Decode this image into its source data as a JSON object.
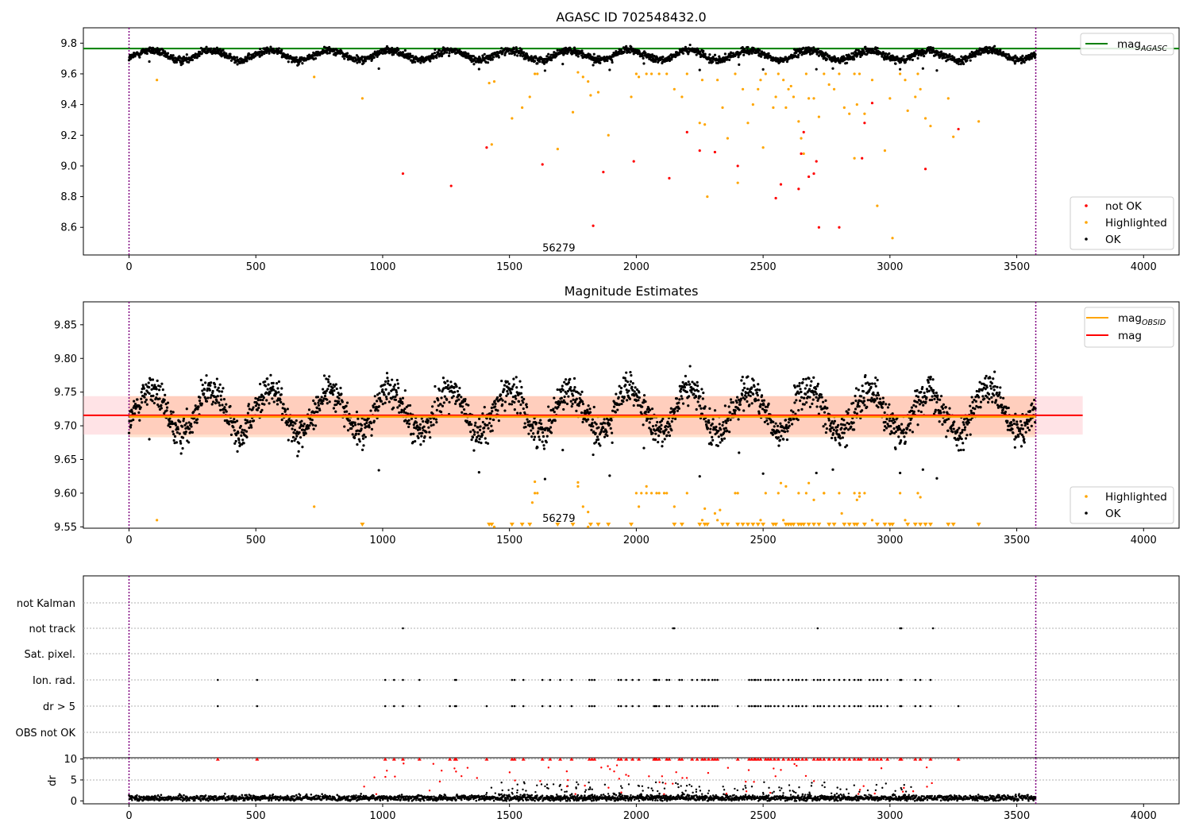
{
  "chart_data": [
    {
      "type": "scatter",
      "title": "AGASC ID 702548432.0",
      "xlim": [
        -180,
        4140
      ],
      "ylim": [
        8.42,
        9.9
      ],
      "xticks": [
        0,
        500,
        1000,
        1500,
        2000,
        2500,
        3000,
        3500,
        4000
      ],
      "yticks": [
        8.6,
        8.8,
        9.0,
        9.2,
        9.4,
        9.6,
        9.8
      ],
      "ytick_labels": [
        "8.6",
        "8.8",
        "9.0",
        "9.2",
        "9.4",
        "9.6",
        "9.8"
      ],
      "obsid_boundaries": [
        0,
        3575
      ],
      "annotation": {
        "text": "56279",
        "x": 1780,
        "y": 8.47
      },
      "hlines": [
        {
          "name": "mag_AGASC",
          "y": 9.765,
          "color": "#008000"
        }
      ],
      "series": [
        {
          "name": "not OK",
          "color": "#ff0000",
          "n_points": 35
        },
        {
          "name": "Highlighted",
          "color": "#ffa500",
          "n_points": 110
        },
        {
          "name": "OK",
          "color": "#000000",
          "n_points": 2400,
          "oscillation": {
            "center": 9.722,
            "amplitude": 0.032,
            "period_days": 236,
            "noise": 0.012
          }
        }
      ],
      "legends": [
        {
          "entries": [
            {
              "label": "mag",
              "sub": "AGASC",
              "color": "#008000",
              "kind": "line"
            }
          ],
          "loc": "upper right"
        },
        {
          "entries": [
            {
              "label": "not OK",
              "color": "#ff0000",
              "kind": "dot"
            },
            {
              "label": "Highlighted",
              "color": "#ffa500",
              "kind": "dot"
            },
            {
              "label": "OK",
              "color": "#000000",
              "kind": "dot"
            }
          ],
          "loc": "lower right"
        }
      ]
    },
    {
      "type": "scatter",
      "title": "Magnitude Estimates",
      "xlim": [
        -180,
        4140
      ],
      "ylim": [
        9.548,
        9.884
      ],
      "xticks": [
        0,
        500,
        1000,
        1500,
        2000,
        2500,
        3000,
        3500,
        4000
      ],
      "yticks": [
        9.55,
        9.6,
        9.65,
        9.7,
        9.75,
        9.8,
        9.85
      ],
      "ytick_labels": [
        "9.55",
        "9.60",
        "9.65",
        "9.70",
        "9.75",
        "9.80",
        "9.85"
      ],
      "obsid_boundaries": [
        0,
        3575
      ],
      "annotation": {
        "text": "56279",
        "x": 1780,
        "y": 9.557
      },
      "hlines": [
        {
          "name": "mag_OBSID",
          "y": 9.7135,
          "color": "#ffa500",
          "x_range": [
            0,
            3575
          ],
          "band": [
            9.683,
            9.744
          ]
        },
        {
          "name": "mag",
          "y": 9.7155,
          "color": "#ff0000",
          "x_range": [
            -180,
            3760
          ],
          "band": [
            9.687,
            9.744
          ]
        }
      ],
      "series": [
        {
          "name": "Highlighted",
          "color": "#ffa500"
        },
        {
          "name": "OK",
          "color": "#000000"
        }
      ],
      "legends": [
        {
          "entries": [
            {
              "label": "mag",
              "sub": "OBSID",
              "color": "#ffa500",
              "kind": "line"
            },
            {
              "label": "mag",
              "color": "#ff0000",
              "kind": "line"
            }
          ],
          "loc": "upper right"
        },
        {
          "entries": [
            {
              "label": "Highlighted",
              "color": "#ffa500",
              "kind": "dot"
            },
            {
              "label": "OK",
              "color": "#000000",
              "kind": "dot"
            }
          ],
          "loc": "lower right"
        }
      ]
    },
    {
      "type": "scatter",
      "title": "",
      "xlim": [
        -180,
        4140
      ],
      "categories": [
        "not Kalman",
        "not track",
        "Sat. pixel.",
        "Ion. rad.",
        "dr > 5",
        "OBS not OK"
      ],
      "flag_x": {
        "not Kalman": [],
        "not track": [
          1080,
          2145,
          2150,
          2715,
          3040,
          3045,
          3170
        ],
        "Sat. pixel.": [],
        "Ion. rad.": [
          350,
          505,
          1010,
          1045,
          1080,
          1145,
          1285,
          1290,
          1510,
          1520,
          1555,
          1630,
          1660,
          1700,
          1745,
          1815,
          1825,
          1835,
          1930,
          1940,
          1960,
          1985,
          2010,
          2070,
          2075,
          2080,
          2090,
          2120,
          2130,
          2170,
          2180,
          2220,
          2240,
          2260,
          2270,
          2285,
          2300,
          2310,
          2320,
          2445,
          2455,
          2465,
          2470,
          2480,
          2490,
          2510,
          2520,
          2530,
          2545,
          2560,
          2580,
          2600,
          2615,
          2630,
          2640,
          2655,
          2670,
          2700,
          2715,
          2725,
          2740,
          2760,
          2780,
          2800,
          2820,
          2840,
          2860,
          2875,
          2885,
          2920,
          2935,
          2950,
          2965,
          2990,
          3040,
          3045,
          3100,
          3120,
          3160
        ],
        "dr > 5": [
          350,
          505,
          1010,
          1045,
          1080,
          1145,
          1265,
          1285,
          1290,
          1410,
          1510,
          1520,
          1555,
          1630,
          1660,
          1700,
          1745,
          1815,
          1825,
          1835,
          1930,
          1940,
          1960,
          1985,
          2010,
          2070,
          2075,
          2080,
          2090,
          2120,
          2130,
          2170,
          2180,
          2220,
          2240,
          2260,
          2270,
          2285,
          2300,
          2310,
          2320,
          2400,
          2445,
          2455,
          2465,
          2470,
          2480,
          2490,
          2510,
          2520,
          2530,
          2545,
          2560,
          2580,
          2600,
          2615,
          2630,
          2640,
          2655,
          2670,
          2700,
          2715,
          2725,
          2740,
          2760,
          2780,
          2800,
          2820,
          2840,
          2860,
          2875,
          2885,
          2920,
          2935,
          2950,
          2965,
          2990,
          3040,
          3045,
          3100,
          3120,
          3160,
          3270
        ],
        "OBS not OK": []
      },
      "obsid_boundaries": [
        0,
        3575
      ]
    },
    {
      "type": "scatter",
      "xlim": [
        -180,
        4140
      ],
      "ylim": [
        -0.7,
        10.3
      ],
      "ylabel": "dr",
      "yticks": [
        0,
        5,
        10
      ],
      "ytick_labels": [
        "0",
        "5",
        "10"
      ],
      "obsid_boundaries": [
        0,
        3575
      ],
      "xticks": [
        0,
        500,
        1000,
        1500,
        2000,
        2500,
        3000,
        3500,
        4000
      ],
      "series": [
        {
          "name": "OK",
          "color": "#000000"
        },
        {
          "name": "dr > 5",
          "color": "#ff0000"
        }
      ]
    }
  ]
}
